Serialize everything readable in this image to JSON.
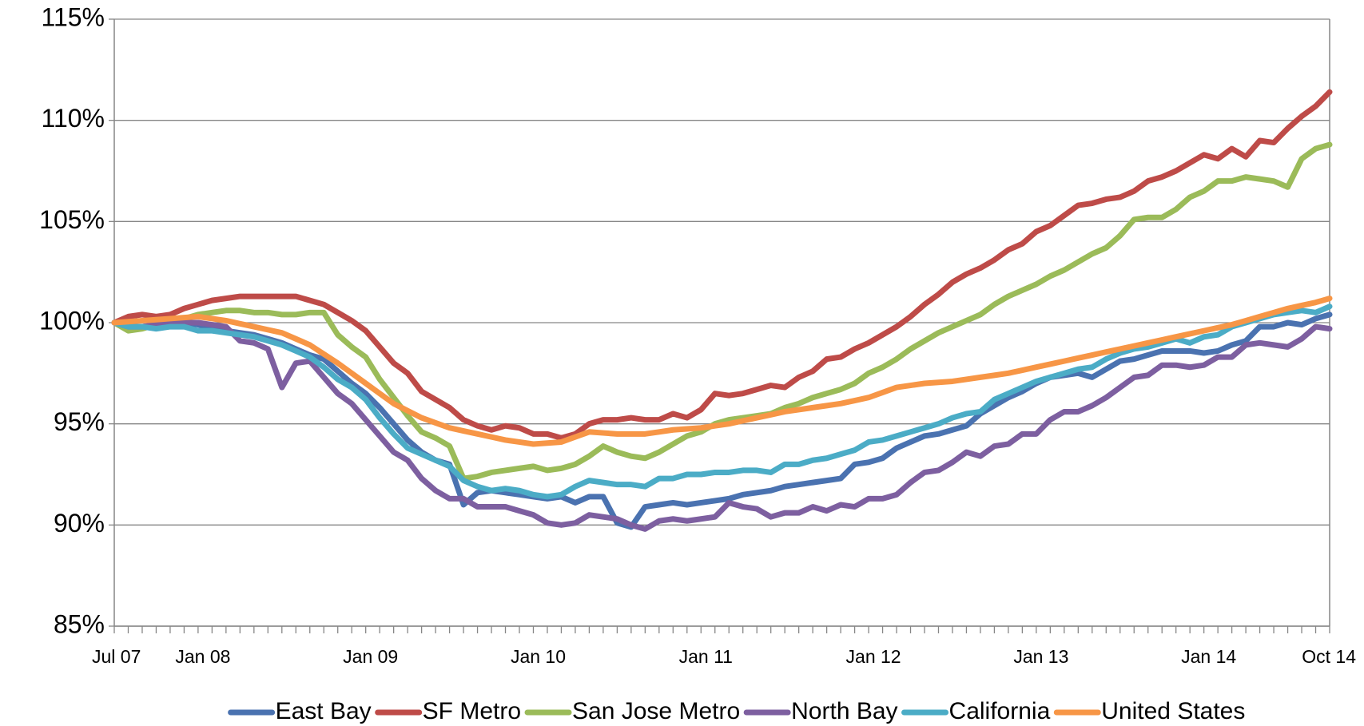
{
  "chart_data": {
    "type": "line",
    "categories": [
      "Jul 07",
      null,
      null,
      null,
      null,
      null,
      "Jan 08",
      null,
      null,
      null,
      null,
      null,
      null,
      null,
      null,
      null,
      null,
      null,
      "Jan 09",
      null,
      null,
      null,
      null,
      null,
      null,
      null,
      null,
      null,
      null,
      null,
      "Jan 10",
      null,
      null,
      null,
      null,
      null,
      null,
      null,
      null,
      null,
      null,
      null,
      "Jan 11",
      null,
      null,
      null,
      null,
      null,
      null,
      null,
      null,
      null,
      null,
      null,
      "Jan 12",
      null,
      null,
      null,
      null,
      null,
      null,
      null,
      null,
      null,
      null,
      null,
      "Jan 13",
      null,
      null,
      null,
      null,
      null,
      null,
      null,
      null,
      null,
      null,
      null,
      "Jan 14",
      null,
      null,
      null,
      null,
      null,
      null,
      null,
      null,
      "Oct 14"
    ],
    "series": [
      {
        "name": "East Bay",
        "color": "#4a72b0",
        "values": [
          100,
          99.8,
          99.8,
          99.9,
          99.9,
          100.0,
          99.9,
          99.7,
          99.6,
          99.5,
          99.4,
          99.2,
          99.0,
          98.7,
          98.4,
          98.2,
          97.6,
          97.0,
          96.5,
          95.8,
          95.0,
          94.2,
          93.6,
          93.2,
          93.0,
          91.0,
          91.6,
          91.7,
          91.6,
          91.5,
          91.4,
          91.3,
          91.4,
          91.1,
          91.4,
          91.4,
          90.1,
          89.9,
          90.9,
          91.0,
          91.1,
          91.0,
          91.1,
          91.2,
          91.3,
          91.5,
          91.6,
          91.7,
          91.9,
          92.0,
          92.1,
          92.2,
          92.3,
          93.0,
          93.1,
          93.3,
          93.8,
          94.1,
          94.4,
          94.5,
          94.7,
          94.9,
          95.5,
          95.9,
          96.3,
          96.6,
          97.0,
          97.3,
          97.4,
          97.5,
          97.3,
          97.7,
          98.1,
          98.2,
          98.4,
          98.6,
          98.6,
          98.6,
          98.5,
          98.6,
          98.9,
          99.1,
          99.8,
          99.8,
          100.0,
          99.9,
          100.2,
          100.4
        ]
      },
      {
        "name": "SF Metro",
        "color": "#be4b48",
        "values": [
          100,
          100.3,
          100.4,
          100.3,
          100.4,
          100.7,
          100.9,
          101.1,
          101.2,
          101.3,
          101.3,
          101.3,
          101.3,
          101.3,
          101.1,
          100.9,
          100.5,
          100.1,
          99.6,
          98.8,
          98.0,
          97.5,
          96.6,
          96.2,
          95.8,
          95.2,
          94.9,
          94.7,
          94.9,
          94.8,
          94.5,
          94.5,
          94.3,
          94.5,
          95.0,
          95.2,
          95.2,
          95.3,
          95.2,
          95.2,
          95.5,
          95.3,
          95.7,
          96.5,
          96.4,
          96.5,
          96.7,
          96.9,
          96.8,
          97.3,
          97.6,
          98.2,
          98.3,
          98.7,
          99.0,
          99.4,
          99.8,
          100.3,
          100.9,
          101.4,
          102.0,
          102.4,
          102.7,
          103.1,
          103.6,
          103.9,
          104.5,
          104.8,
          105.3,
          105.8,
          105.9,
          106.1,
          106.2,
          106.5,
          107.0,
          107.2,
          107.5,
          107.9,
          108.3,
          108.1,
          108.6,
          108.2,
          109.0,
          108.9,
          109.6,
          110.2,
          110.7,
          111.4
        ]
      },
      {
        "name": "San Jose Metro",
        "color": "#9bbb59",
        "values": [
          100,
          99.6,
          99.7,
          99.9,
          100.1,
          100.2,
          100.4,
          100.5,
          100.6,
          100.6,
          100.5,
          100.5,
          100.4,
          100.4,
          100.5,
          100.5,
          99.4,
          98.8,
          98.3,
          97.2,
          96.3,
          95.4,
          94.6,
          94.3,
          93.9,
          92.3,
          92.4,
          92.6,
          92.7,
          92.8,
          92.9,
          92.7,
          92.8,
          93.0,
          93.4,
          93.9,
          93.6,
          93.4,
          93.3,
          93.6,
          94.0,
          94.4,
          94.6,
          95.0,
          95.2,
          95.3,
          95.4,
          95.5,
          95.8,
          96.0,
          96.3,
          96.5,
          96.7,
          97.0,
          97.5,
          97.8,
          98.2,
          98.7,
          99.1,
          99.5,
          99.8,
          100.1,
          100.4,
          100.9,
          101.3,
          101.6,
          101.9,
          102.3,
          102.6,
          103.0,
          103.4,
          103.7,
          104.3,
          105.1,
          105.2,
          105.2,
          105.6,
          106.2,
          106.5,
          107.0,
          107.0,
          107.2,
          107.1,
          107.0,
          106.7,
          108.1,
          108.6,
          108.8
        ]
      },
      {
        "name": "North Bay",
        "color": "#7d5fa0",
        "values": [
          100,
          99.8,
          99.8,
          99.9,
          100.0,
          100.0,
          100.0,
          99.9,
          99.8,
          99.1,
          99.0,
          98.7,
          96.8,
          98.0,
          98.1,
          97.3,
          96.5,
          96.0,
          95.2,
          94.4,
          93.6,
          93.2,
          92.3,
          91.7,
          91.3,
          91.3,
          90.9,
          90.9,
          90.9,
          90.7,
          90.5,
          90.1,
          90.0,
          90.1,
          90.5,
          90.4,
          90.3,
          90.0,
          89.8,
          90.2,
          90.3,
          90.2,
          90.3,
          90.4,
          91.1,
          90.9,
          90.8,
          90.4,
          90.6,
          90.6,
          90.9,
          90.7,
          91.0,
          90.9,
          91.3,
          91.3,
          91.5,
          92.1,
          92.6,
          92.7,
          93.1,
          93.6,
          93.4,
          93.9,
          94.0,
          94.5,
          94.5,
          95.2,
          95.6,
          95.6,
          95.9,
          96.3,
          96.8,
          97.3,
          97.4,
          97.9,
          97.9,
          97.8,
          97.9,
          98.3,
          98.3,
          98.9,
          99.0,
          98.9,
          98.8,
          99.2,
          99.8,
          99.7
        ]
      },
      {
        "name": "California",
        "color": "#4bacc6",
        "values": [
          100,
          99.8,
          99.8,
          99.7,
          99.8,
          99.8,
          99.6,
          99.6,
          99.5,
          99.4,
          99.3,
          99.1,
          98.9,
          98.6,
          98.3,
          97.8,
          97.2,
          96.8,
          96.2,
          95.3,
          94.5,
          93.8,
          93.5,
          93.2,
          92.9,
          92.2,
          91.9,
          91.7,
          91.8,
          91.7,
          91.5,
          91.4,
          91.5,
          91.9,
          92.2,
          92.1,
          92.0,
          92.0,
          91.9,
          92.3,
          92.3,
          92.5,
          92.5,
          92.6,
          92.6,
          92.7,
          92.7,
          92.6,
          93.0,
          93.0,
          93.2,
          93.3,
          93.5,
          93.7,
          94.1,
          94.2,
          94.4,
          94.6,
          94.8,
          95.0,
          95.3,
          95.5,
          95.6,
          96.2,
          96.5,
          96.8,
          97.1,
          97.3,
          97.5,
          97.7,
          97.8,
          98.2,
          98.5,
          98.7,
          98.8,
          99.0,
          99.2,
          99.0,
          99.3,
          99.4,
          99.8,
          100.0,
          100.2,
          100.4,
          100.5,
          100.6,
          100.5,
          100.8
        ]
      },
      {
        "name": "United States",
        "color": "#f79646",
        "values": [
          100,
          100.05,
          100.1,
          100.15,
          100.2,
          100.25,
          100.3,
          100.2,
          100.1,
          99.95,
          99.8,
          99.65,
          99.5,
          99.2,
          98.9,
          98.45,
          98.0,
          97.5,
          97.0,
          96.5,
          96.0,
          95.65,
          95.3,
          95.05,
          94.8,
          94.65,
          94.5,
          94.35,
          94.2,
          94.1,
          94.0,
          94.05,
          94.1,
          94.35,
          94.6,
          94.55,
          94.5,
          94.5,
          94.5,
          94.6,
          94.7,
          94.75,
          94.8,
          94.9,
          95.0,
          95.15,
          95.3,
          95.45,
          95.6,
          95.7,
          95.8,
          95.9,
          96.0,
          96.15,
          96.3,
          96.55,
          96.8,
          96.9,
          97.0,
          97.05,
          97.1,
          97.2,
          97.3,
          97.4,
          97.5,
          97.65,
          97.8,
          97.95,
          98.1,
          98.25,
          98.4,
          98.55,
          98.7,
          98.85,
          99.0,
          99.15,
          99.3,
          99.45,
          99.6,
          99.75,
          99.9,
          100.1,
          100.3,
          100.5,
          100.7,
          100.85,
          101.0,
          101.2
        ]
      }
    ],
    "ylim": [
      85,
      115
    ],
    "yticks": [
      {
        "value": 85,
        "label": "85%"
      },
      {
        "value": 90,
        "label": "90%"
      },
      {
        "value": 95,
        "label": "95%"
      },
      {
        "value": 100,
        "label": "100%"
      },
      {
        "value": 105,
        "label": "105%"
      },
      {
        "value": 110,
        "label": "110%"
      },
      {
        "value": 115,
        "label": "115%"
      }
    ],
    "grid": true,
    "legend": "bottom"
  }
}
